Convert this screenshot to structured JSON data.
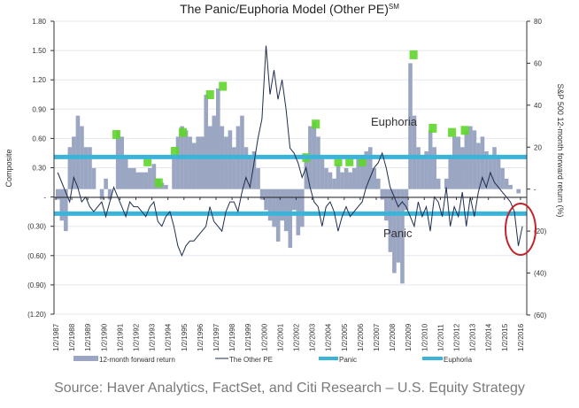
{
  "chart_data": {
    "type": "bar+line",
    "title": "The Panic/Euphoria Model (Other PE)",
    "title_superscript": "SM",
    "ylabel_left": "Composite",
    "ylabel_right": "S&P 500 12-month forward return (%)",
    "ylim_left": [
      -1.2,
      1.8
    ],
    "ylim_right": [
      -60,
      80
    ],
    "yticks_left": [
      "1.80",
      "1.50",
      "1.20",
      "0.90",
      "0.60",
      "0.30",
      "-",
      "(0.30)",
      "(0.60)",
      "(0.90)",
      "(1.20)"
    ],
    "yticks_left_values": [
      1.8,
      1.5,
      1.2,
      0.9,
      0.6,
      0.3,
      0,
      -0.3,
      -0.6,
      -0.9,
      -1.2
    ],
    "yticks_right": [
      "80",
      "60",
      "40",
      "20",
      "-",
      "(20)",
      "(40)",
      "(60)"
    ],
    "yticks_right_values": [
      80,
      60,
      40,
      20,
      0,
      -20,
      -40,
      -60
    ],
    "xticks": [
      "1/2/1987",
      "1/2/1988",
      "1/2/1989",
      "1/2/1990",
      "1/2/1991",
      "1/2/1992",
      "1/2/1993",
      "1/2/1994",
      "1/2/1995",
      "1/2/1996",
      "1/2/1997",
      "1/2/1998",
      "1/2/1999",
      "1/2/2000",
      "1/2/2001",
      "1/2/2002",
      "1/2/2003",
      "1/2/2004",
      "1/2/2005",
      "1/2/2006",
      "1/2/2007",
      "1/2/2008",
      "1/2/2009",
      "1/2/2010",
      "1/2/2011",
      "1/2/2012",
      "1/2/2013",
      "1/2/2014",
      "1/2/2015",
      "1/2/2016"
    ],
    "grid": true,
    "legend_position": "bottom",
    "frequency": "quarterly",
    "start_year": 1987,
    "series": [
      {
        "name": "12-month forward return",
        "type": "bar",
        "axis": "right",
        "color": "#9aa6c2",
        "values_by_year": [
          [
            -5,
            -15,
            -20,
            20
          ],
          [
            25,
            35,
            30,
            20
          ],
          [
            20,
            10,
            0,
            -5
          ],
          [
            5,
            -5,
            0,
            28
          ],
          [
            25,
            15,
            10,
            10
          ],
          [
            8,
            8,
            8,
            10
          ],
          [
            12,
            5,
            3,
            2
          ],
          [
            0,
            15,
            25,
            30
          ],
          [
            28,
            25,
            22,
            25
          ],
          [
            25,
            45,
            30,
            35
          ],
          [
            48,
            30,
            25,
            28
          ],
          [
            20,
            30,
            35,
            20
          ],
          [
            15,
            18,
            10,
            -5
          ],
          [
            -10,
            -15,
            -18,
            -25
          ],
          [
            -15,
            -20,
            -28,
            -10
          ],
          [
            -22,
            -18,
            15,
            30
          ],
          [
            32,
            25,
            15,
            10
          ],
          [
            8,
            5,
            12,
            8
          ],
          [
            10,
            8,
            10,
            15
          ],
          [
            15,
            18,
            20,
            10
          ],
          [
            5,
            -5,
            -15,
            -30
          ],
          [
            -40,
            -35,
            -45,
            -10
          ],
          [
            60,
            35,
            20,
            15
          ],
          [
            18,
            28,
            20,
            5
          ],
          [
            0,
            5,
            15,
            25
          ],
          [
            25,
            20,
            28,
            30
          ],
          [
            28,
            22,
            25,
            18
          ],
          [
            15,
            20,
            15,
            10
          ],
          [
            5,
            2,
            0,
            -2
          ]
        ]
      },
      {
        "name": "The Other PE",
        "type": "line",
        "axis": "left",
        "color": "#1f2d4d",
        "values_by_year": [
          [
            0.25,
            0.15,
            0.05,
            -0.05
          ],
          [
            0.2,
            0.1,
            -0.05,
            0.0
          ],
          [
            -0.1,
            -0.15,
            -0.1,
            -0.05
          ],
          [
            -0.2,
            -0.05,
            0.1,
            0.0
          ],
          [
            -0.1,
            -0.2,
            -0.05,
            -0.1
          ],
          [
            -0.1,
            -0.15,
            -0.2,
            -0.1
          ],
          [
            -0.05,
            -0.25,
            -0.3,
            -0.2
          ],
          [
            -0.15,
            -0.3,
            -0.5,
            -0.6
          ],
          [
            -0.5,
            -0.45,
            -0.45,
            -0.4
          ],
          [
            -0.35,
            -0.3,
            -0.1,
            -0.25
          ],
          [
            -0.3,
            -0.35,
            -0.15,
            -0.05
          ],
          [
            -0.05,
            -0.15,
            0.05,
            0.2
          ],
          [
            0.1,
            0.35,
            0.6,
            0.8
          ],
          [
            1.55,
            1.05,
            1.3,
            1.0
          ],
          [
            1.2,
            0.9,
            0.5,
            0.45
          ],
          [
            0.35,
            0.2,
            0.3,
            0.1
          ],
          [
            -0.05,
            -0.1,
            -0.3,
            -0.1
          ],
          [
            -0.05,
            -0.15,
            -0.35,
            -0.2
          ],
          [
            -0.1,
            -0.2,
            -0.15,
            -0.1
          ],
          [
            -0.05,
            0.1,
            0.2,
            0.3
          ],
          [
            0.35,
            0.45,
            0.3,
            0.1
          ],
          [
            0.0,
            -0.1,
            -0.05,
            -0.1
          ],
          [
            -0.2,
            -0.3,
            -0.05,
            -0.2
          ],
          [
            -0.1,
            -0.35,
            0.0,
            -0.05
          ],
          [
            -0.2,
            0.1,
            -0.3,
            -0.1
          ],
          [
            -0.2,
            0.05,
            -0.3,
            0.0
          ],
          [
            -0.2,
            0.05,
            0.2,
            0.1
          ],
          [
            0.25,
            0.15,
            0.1,
            0.05
          ],
          [
            0.0,
            -0.05,
            -0.15,
            -0.5
          ],
          [
            -0.3
          ]
        ]
      },
      {
        "name": "Panic",
        "type": "hline",
        "axis": "left",
        "value": -0.17,
        "color": "#3cb4da"
      },
      {
        "name": "Euphoria",
        "type": "hline",
        "axis": "left",
        "value": 0.41,
        "color": "#3cb4da"
      }
    ],
    "signal_markers": {
      "color": "#5fd62a",
      "points": [
        [
          1990.75,
          26
        ],
        [
          1992.7,
          13
        ],
        [
          1993.4,
          3
        ],
        [
          1994.4,
          18
        ],
        [
          1994.9,
          27
        ],
        [
          1996.6,
          45
        ],
        [
          1997.4,
          49
        ],
        [
          2002.6,
          15
        ],
        [
          2003.2,
          31
        ],
        [
          2004.6,
          13
        ],
        [
          2005.3,
          13
        ],
        [
          2006.1,
          13
        ],
        [
          2009.3,
          64
        ],
        [
          2010.5,
          29
        ],
        [
          2011.7,
          27
        ],
        [
          2012.5,
          28
        ]
      ]
    },
    "annotations": {
      "euphoria": "Euphoria",
      "panic": "Panic",
      "highlight_color": "#c0262c"
    }
  },
  "source": "Source: Haver Analytics, FactSet, and Citi Research – U.S. Equity Strategy"
}
